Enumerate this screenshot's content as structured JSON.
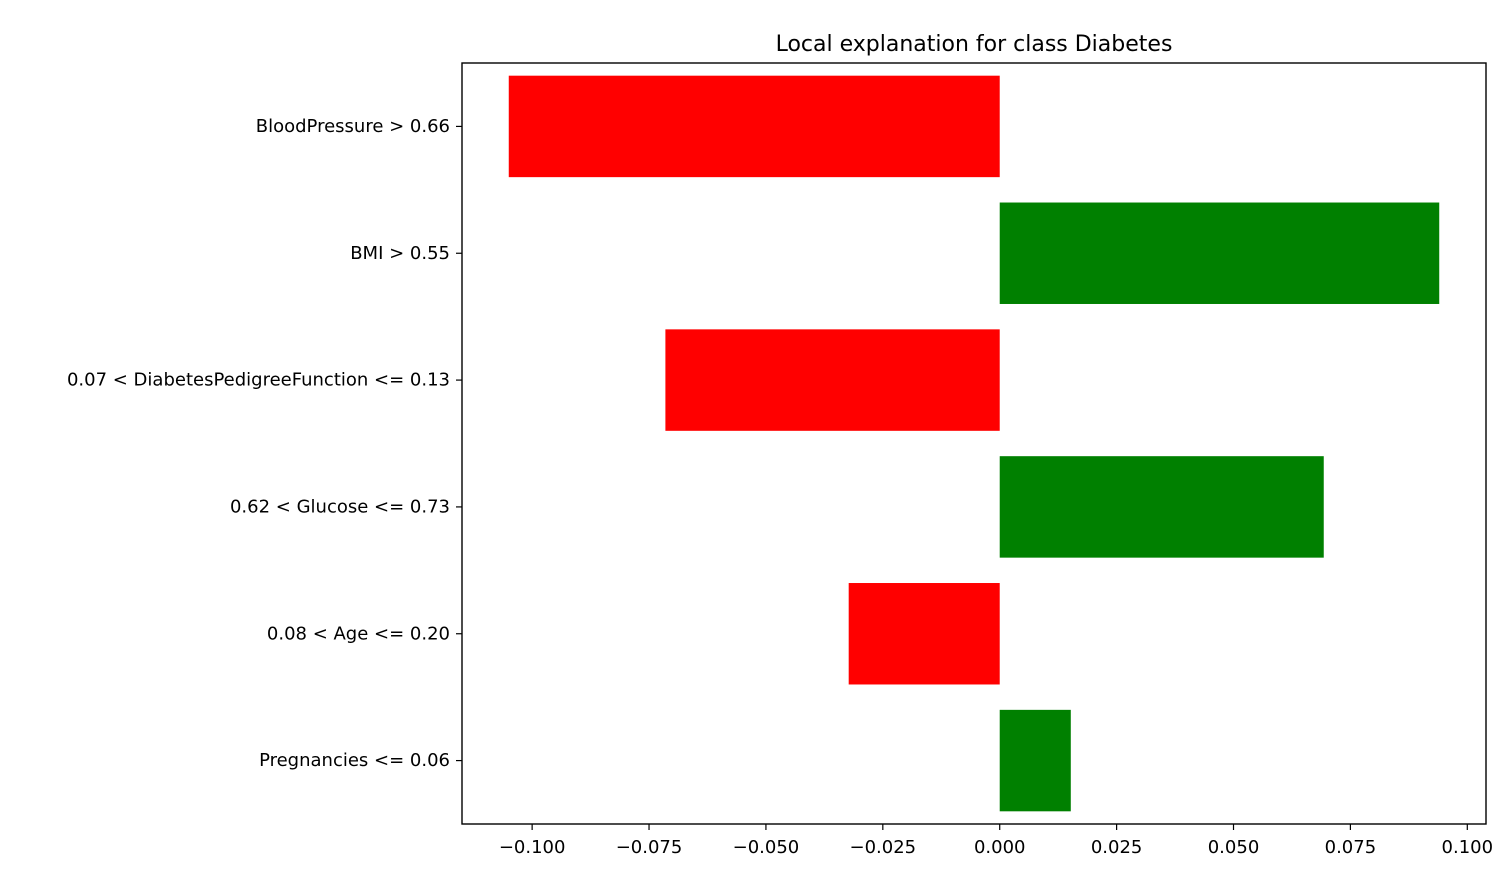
{
  "chart_data": {
    "type": "bar",
    "orientation": "horizontal",
    "title": "Local explanation for class Diabetes",
    "xlabel": "",
    "ylabel": "",
    "xlim": [
      -0.115,
      0.104
    ],
    "grid": false,
    "legend": "none",
    "colors": {
      "positive": "#008000",
      "negative": "#ff0000"
    },
    "categories": [
      "BloodPressure > 0.66",
      "BMI > 0.55",
      "0.07 < DiabetesPedigreeFunction <= 0.13",
      "0.62 < Glucose <= 0.73",
      "0.08 < Age <= 0.20",
      "Pregnancies <= 0.06"
    ],
    "values": [
      -0.105,
      0.094,
      -0.0715,
      0.0693,
      -0.0323,
      0.0152
    ],
    "x_ticks": [
      -0.1,
      -0.075,
      -0.05,
      -0.025,
      0.0,
      0.025,
      0.05,
      0.075,
      0.1
    ],
    "x_tick_labels": [
      "−0.100",
      "−0.075",
      "−0.050",
      "−0.025",
      "0.000",
      "0.025",
      "0.050",
      "0.075",
      "0.100"
    ]
  }
}
